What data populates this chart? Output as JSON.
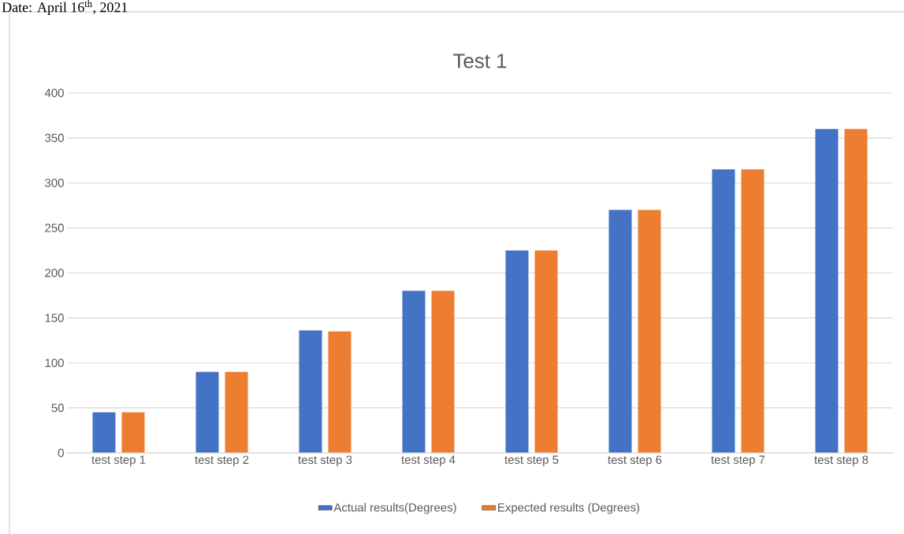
{
  "chart_data": {
    "type": "bar",
    "title": "Test 1",
    "annotations": [
      "Date: April 16$^{th}$, 2021"
    ],
    "categories": [
      "test step 1",
      "test step 2",
      "test step 3",
      "test step 4",
      "test step 5",
      "test step 6",
      "test step 7",
      "test step 8"
    ],
    "series": [
      {
        "name": "Actual results(Degrees)",
        "color": "#4472c4",
        "values": [
          45,
          90,
          136,
          180,
          225,
          270,
          315,
          360
        ]
      },
      {
        "name": "Expected results (Degrees)",
        "color": "#ed7d31",
        "values": [
          45,
          90,
          135,
          180,
          225,
          270,
          315,
          360
        ]
      }
    ],
    "ylim": [
      0,
      400
    ],
    "yticks": [
      0,
      50,
      100,
      150,
      200,
      250,
      300,
      350,
      400
    ],
    "grid": "y",
    "legend": "bottom"
  }
}
